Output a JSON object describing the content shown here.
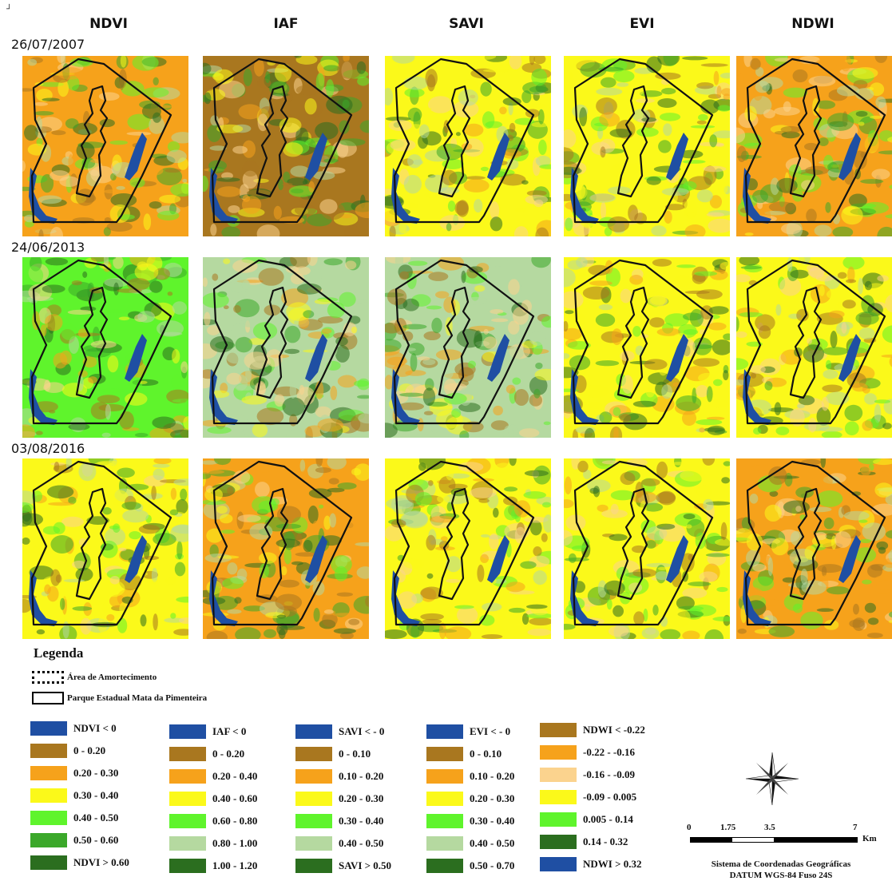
{
  "corner_mark": "┘",
  "column_headers": [
    "NDVI",
    "IAF",
    "SAVI",
    "EVI",
    "NDWI"
  ],
  "dates": [
    "26/07/2007",
    "24/06/2013",
    "03/08/2016"
  ],
  "legend": {
    "title": "Legenda",
    "buffer_zone": "Área de Amortecimento",
    "park": "Parque Estadual Mata da Pimenteira",
    "ndvi": [
      {
        "label": "NDVI < 0",
        "color": "#1f4fa3"
      },
      {
        "label": "0 - 0.20",
        "color": "#a9771f"
      },
      {
        "label": "0.20 - 0.30",
        "color": "#f6a21b"
      },
      {
        "label": "0.30 - 0.40",
        "color": "#fbf91a"
      },
      {
        "label": "0.40 - 0.50",
        "color": "#5ff42c"
      },
      {
        "label": "0.50 - 0.60",
        "color": "#3ba82a"
      },
      {
        "label": "NDVI > 0.60",
        "color": "#2b6e1f"
      }
    ],
    "iaf": [
      {
        "label": "IAF < 0",
        "color": "#1f4fa3"
      },
      {
        "label": "0 - 0.20",
        "color": "#a9771f"
      },
      {
        "label": "0.20 - 0.40",
        "color": "#f6a21b"
      },
      {
        "label": "0.40 - 0.60",
        "color": "#fbf91a"
      },
      {
        "label": "0.60 - 0.80",
        "color": "#5ff42c"
      },
      {
        "label": "0.80 - 1.00",
        "color": "#b5d9a0"
      },
      {
        "label": "1.00 - 1.20",
        "color": "#2b6e1f"
      }
    ],
    "savi": [
      {
        "label": "SAVI < - 0",
        "color": "#1f4fa3"
      },
      {
        "label": "0 - 0.10",
        "color": "#a9771f"
      },
      {
        "label": "0.10 - 0.20",
        "color": "#f6a21b"
      },
      {
        "label": "0.20 - 0.30",
        "color": "#fbf91a"
      },
      {
        "label": "0.30 - 0.40",
        "color": "#5ff42c"
      },
      {
        "label": "0.40 - 0.50",
        "color": "#b5d9a0"
      },
      {
        "label": "SAVI > 0.50",
        "color": "#2b6e1f"
      }
    ],
    "evi": [
      {
        "label": "EVI < - 0",
        "color": "#1f4fa3"
      },
      {
        "label": "0 - 0.10",
        "color": "#a9771f"
      },
      {
        "label": "0.10 - 0.20",
        "color": "#f6a21b"
      },
      {
        "label": "0.20 - 0.30",
        "color": "#fbf91a"
      },
      {
        "label": "0.30 - 0.40",
        "color": "#5ff42c"
      },
      {
        "label": "0.40 - 0.50",
        "color": "#b5d9a0"
      },
      {
        "label": "0.50 - 0.70",
        "color": "#2b6e1f"
      }
    ],
    "ndwi": [
      {
        "label": "NDWI < -0.22",
        "color": "#a9771f"
      },
      {
        "label": "-0.22 - -0.16",
        "color": "#f6a21b"
      },
      {
        "label": "-0.16 - -0.09",
        "color": "#fbd38e"
      },
      {
        "label": "-0.09 - 0.005",
        "color": "#fbf91a"
      },
      {
        "label": "0.005 - 0.14",
        "color": "#5ff42c"
      },
      {
        "label": "0.14 - 0.32",
        "color": "#2b6e1f"
      },
      {
        "label": "NDWI > 0.32",
        "color": "#1f4fa3"
      }
    ]
  },
  "scale": {
    "ticks": [
      "0",
      "1.75",
      "3.5",
      "7"
    ],
    "unit": "Km"
  },
  "crs": {
    "line1": "Sistema de Coordenadas Geográficas",
    "line2": "DATUM WGS-84 Fuso 24S"
  },
  "panel_palettes": [
    [
      "#f6a21b",
      "#a9771f",
      "#fbf91a",
      "#fbf91a",
      "#f6a21b"
    ],
    [
      "#5ff42c",
      "#b5d9a0",
      "#b5d9a0",
      "#fbf91a",
      "#fbf91a"
    ],
    [
      "#fbf91a",
      "#f6a21b",
      "#fbf91a",
      "#fbf91a",
      "#f6a21b"
    ]
  ],
  "map_colors": {
    "water": "#1f4fa3",
    "outline": "#111111"
  }
}
